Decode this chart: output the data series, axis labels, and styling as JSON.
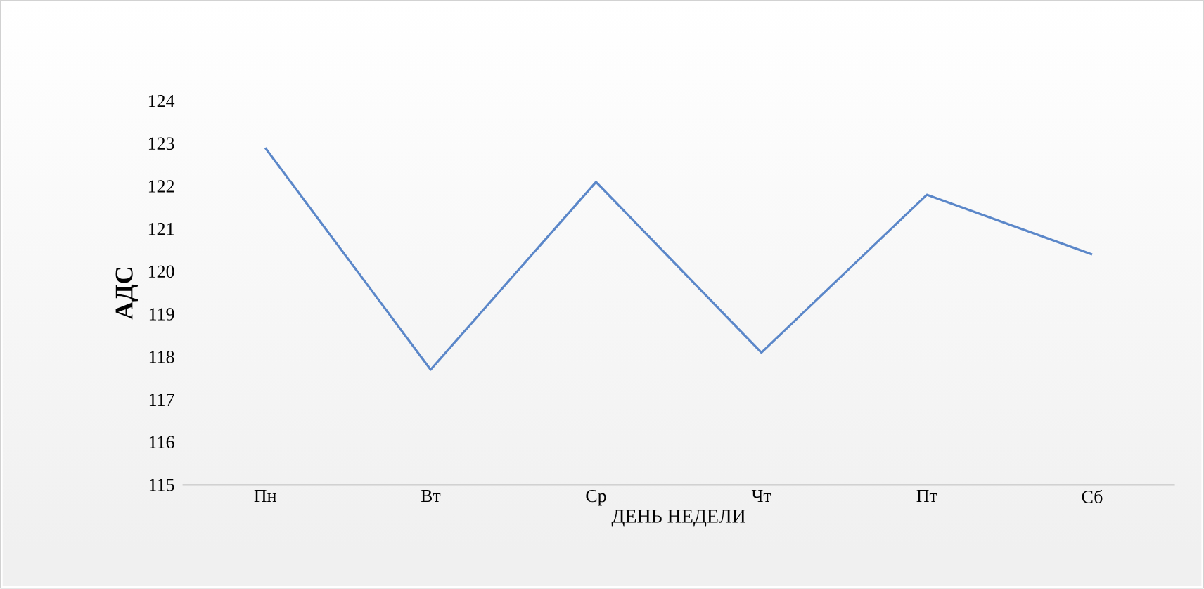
{
  "chart_data": {
    "type": "line",
    "xlabel": "ДЕНЬ НЕДЕЛИ",
    "ylabel": "АДС",
    "categories": [
      "Пн",
      "Вт",
      "Ср",
      "Чт",
      "Пт",
      "Сб"
    ],
    "series": [
      {
        "color": "#5b87c9",
        "values": [
          122.9,
          117.7,
          122.1,
          118.1,
          121.8,
          120.4
        ]
      }
    ],
    "ylim": [
      115,
      124
    ],
    "yticks": [
      115,
      116,
      117,
      118,
      119,
      120,
      121,
      122,
      123,
      124
    ],
    "marker": "none",
    "line_style": "solid"
  }
}
